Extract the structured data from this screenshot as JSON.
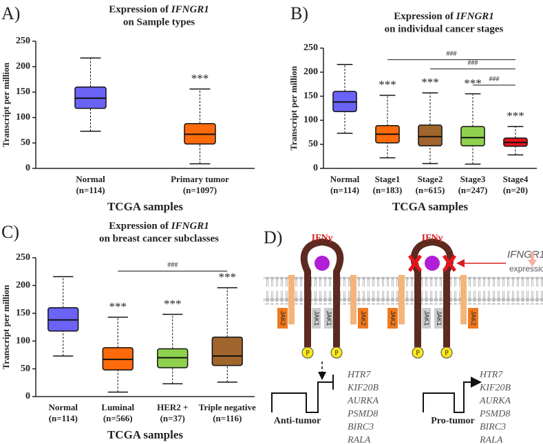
{
  "chart_data": [
    {
      "type": "box",
      "panel_label": "A)",
      "title_prefix": "Expression of ",
      "title_gene": "IFNGR1",
      "subtitle": "on Sample types",
      "x_label": "TCGA samples",
      "y_label": "Transcript per million",
      "categories": [
        "Normal",
        "Primary tumor"
      ],
      "category_counts": [
        "(n=114)",
        "(n=1097)"
      ],
      "colors": [
        "#6b63f5",
        "#ff6a0a"
      ],
      "boxes": [
        {
          "min": 73,
          "q1": 118,
          "median": 138,
          "q3": 160,
          "max": 217
        },
        {
          "min": 9,
          "q1": 48,
          "median": 67,
          "q3": 88,
          "max": 156
        }
      ],
      "annotations": [
        null,
        "***"
      ],
      "brackets": [],
      "ylim": [
        0,
        250
      ],
      "yticks": [
        0,
        50,
        100,
        150,
        200,
        250
      ]
    },
    {
      "type": "box",
      "panel_label": "B)",
      "title_prefix": "Expression of ",
      "title_gene": "IFNGR1",
      "subtitle": "on individual cancer stages",
      "x_label": "TCGA samples",
      "y_label": "Transcript per million",
      "categories": [
        "Normal",
        "Stage1",
        "Stage2",
        "Stage3",
        "Stage4"
      ],
      "category_counts": [
        "(n=114)",
        "(n=183)",
        "(n=615)",
        "(n=247)",
        "(n=20)"
      ],
      "colors": [
        "#6b63f5",
        "#ff6a0a",
        "#a0652d",
        "#8fd14f",
        "#e8141c"
      ],
      "boxes": [
        {
          "min": 73,
          "q1": 118,
          "median": 138,
          "q3": 160,
          "max": 216
        },
        {
          "min": 22,
          "q1": 53,
          "median": 71,
          "q3": 89,
          "max": 152
        },
        {
          "min": 10,
          "q1": 47,
          "median": 66,
          "q3": 90,
          "max": 157
        },
        {
          "min": 9,
          "q1": 47,
          "median": 64,
          "q3": 87,
          "max": 155
        },
        {
          "min": 28,
          "q1": 46,
          "median": 54,
          "q3": 63,
          "max": 87
        }
      ],
      "annotations": [
        null,
        "***",
        "***",
        "***",
        "***"
      ],
      "brackets": [
        {
          "from": 1,
          "to": 4,
          "y": 226,
          "label": "###"
        },
        {
          "from": 2,
          "to": 4,
          "y": 207,
          "label": "###"
        },
        {
          "from": 3,
          "to": 4,
          "y": 173,
          "label": "###"
        }
      ],
      "ylim": [
        0,
        250
      ],
      "yticks": [
        0,
        50,
        100,
        150,
        200,
        250
      ]
    },
    {
      "type": "box",
      "panel_label": "C)",
      "title_prefix": "Expression of ",
      "title_gene": "IFNGR1",
      "subtitle": "on breast cancer subclasses",
      "x_label": "TCGA samples",
      "y_label": "Transcript per million",
      "categories": [
        "Normal",
        "Luminal",
        "HER2 +",
        "Triple negative"
      ],
      "category_counts": [
        "(n=114)",
        "(n=566)",
        "(n=37)",
        "(n=116)"
      ],
      "colors": [
        "#6b63f5",
        "#ff6a0a",
        "#8fd14f",
        "#a0652d"
      ],
      "boxes": [
        {
          "min": 73,
          "q1": 118,
          "median": 138,
          "q3": 160,
          "max": 216
        },
        {
          "min": 8,
          "q1": 48,
          "median": 67,
          "q3": 88,
          "max": 143
        },
        {
          "min": 23,
          "q1": 52,
          "median": 70,
          "q3": 86,
          "max": 148
        },
        {
          "min": 26,
          "q1": 56,
          "median": 73,
          "q3": 107,
          "max": 196
        }
      ],
      "annotations": [
        null,
        "***",
        "***",
        "***"
      ],
      "brackets": [
        {
          "from": 1,
          "to": 3,
          "y": 226,
          "label": "###"
        }
      ],
      "ylim": [
        0,
        250
      ],
      "yticks": [
        0,
        50,
        100,
        150,
        200,
        250
      ]
    }
  ],
  "diagram": {
    "label": "D)",
    "ligand": "IFNγ",
    "receptor": "IFNGR1",
    "receptor_note": "expression",
    "jak_outer": "JAK2",
    "jak_inner": "JAK1",
    "phospho": "P",
    "left_outcome": "Anti-tumor",
    "right_outcome": "Pro-tumor",
    "genes": [
      "HTR7",
      "KIF20B",
      "AURKA",
      "PSMD8",
      "BIRC3",
      "RALA"
    ]
  }
}
